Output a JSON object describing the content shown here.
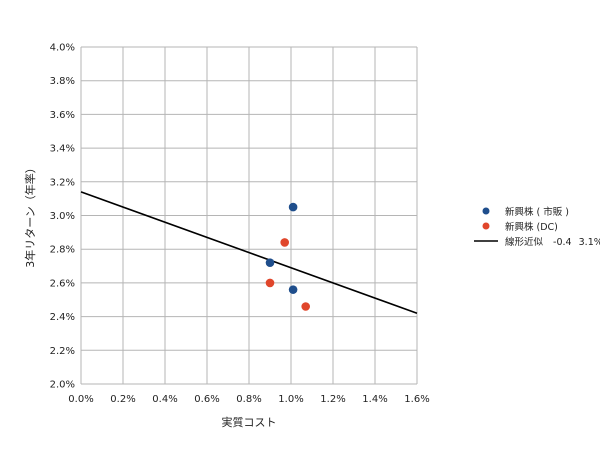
{
  "chart_data": {
    "type": "scatter",
    "xlabel": "実質コスト",
    "ylabel": "3年リターン（年率）",
    "xlim": [
      0.0,
      1.6
    ],
    "ylim": [
      2.0,
      4.0
    ],
    "x_ticks": [
      0.0,
      0.2,
      0.4,
      0.6,
      0.8,
      1.0,
      1.2,
      1.4,
      1.6
    ],
    "y_ticks": [
      2.0,
      2.2,
      2.4,
      2.6,
      2.8,
      3.0,
      3.2,
      3.4,
      3.6,
      3.8,
      4.0
    ],
    "x_tick_labels": [
      "0.0%",
      "0.2%",
      "0.4%",
      "0.6%",
      "0.8%",
      "1.0%",
      "1.2%",
      "1.4%",
      "1.6%"
    ],
    "y_tick_labels": [
      "2.0%",
      "2.2%",
      "2.4%",
      "2.6%",
      "2.8%",
      "3.0%",
      "3.2%",
      "3.4%",
      "3.6%",
      "3.8%",
      "4.0%"
    ],
    "grid": true,
    "legend_position": "right",
    "series": [
      {
        "name": "新興株 ( 市販 )",
        "color": "#1f4e8c",
        "points": [
          {
            "x": 1.01,
            "y": 3.05
          },
          {
            "x": 0.9,
            "y": 2.72
          },
          {
            "x": 1.01,
            "y": 2.56
          }
        ]
      },
      {
        "name": "新興株 (DC)",
        "color": "#e0462b",
        "points": [
          {
            "x": 0.97,
            "y": 2.84
          },
          {
            "x": 0.9,
            "y": 2.6
          },
          {
            "x": 1.07,
            "y": 2.46
          }
        ]
      }
    ],
    "trendline": {
      "name": "線形近似",
      "slope_label": "-0.4",
      "intercept_label": "3.1%",
      "slope": -0.45,
      "intercept": 3.14,
      "color": "#000000"
    }
  }
}
